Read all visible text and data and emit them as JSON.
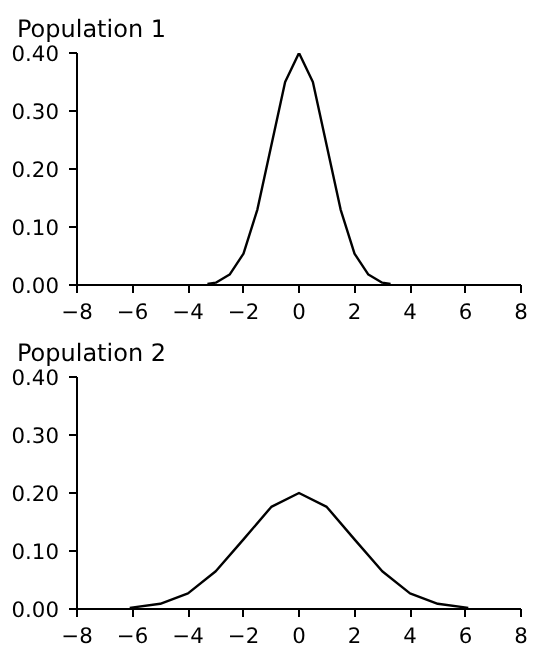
{
  "chart_data": [
    {
      "type": "line",
      "title": "Population 1",
      "xlim": [
        -8,
        8
      ],
      "xticks": [
        -8,
        -6,
        -4,
        -2,
        0,
        2,
        4,
        6,
        8
      ],
      "ylim": [
        0,
        0.4
      ],
      "yticks": [
        {
          "value": 0,
          "label": "0.00"
        },
        {
          "value": 0.1,
          "label": "0.10"
        },
        {
          "value": 0.2,
          "label": "0.20"
        },
        {
          "value": 0.3,
          "label": "0.30"
        },
        {
          "value": 0.4,
          "label": "0.40"
        }
      ],
      "series": [
        {
          "color": "#000000",
          "x": [
            -3.3,
            -3,
            -2.5,
            -2,
            -1.5,
            -1,
            -0.5,
            0,
            0.5,
            1,
            1.5,
            2,
            2.5,
            3,
            3.3
          ],
          "values": [
            0.002,
            0.004,
            0.018,
            0.054,
            0.13,
            0.24,
            0.35,
            0.4,
            0.35,
            0.24,
            0.13,
            0.054,
            0.018,
            0.004,
            0.002
          ]
        }
      ]
    },
    {
      "type": "line",
      "title": "Population 2",
      "xlim": [
        -8,
        8
      ],
      "xticks": [
        -8,
        -6,
        -4,
        -2,
        0,
        2,
        4,
        6,
        8
      ],
      "ylim": [
        0,
        0.4
      ],
      "yticks": [
        {
          "value": 0,
          "label": "0.00"
        },
        {
          "value": 0.1,
          "label": "0.10"
        },
        {
          "value": 0.2,
          "label": "0.20"
        },
        {
          "value": 0.3,
          "label": "0.30"
        },
        {
          "value": 0.4,
          "label": "0.40"
        }
      ],
      "series": [
        {
          "color": "#000000",
          "x": [
            -6.1,
            -5,
            -4,
            -3,
            -2,
            -1,
            0,
            1,
            2,
            3,
            4,
            5,
            6.1
          ],
          "values": [
            0.002,
            0.009,
            0.027,
            0.065,
            0.12,
            0.176,
            0.2,
            0.176,
            0.12,
            0.065,
            0.027,
            0.009,
            0.002
          ]
        }
      ]
    }
  ]
}
